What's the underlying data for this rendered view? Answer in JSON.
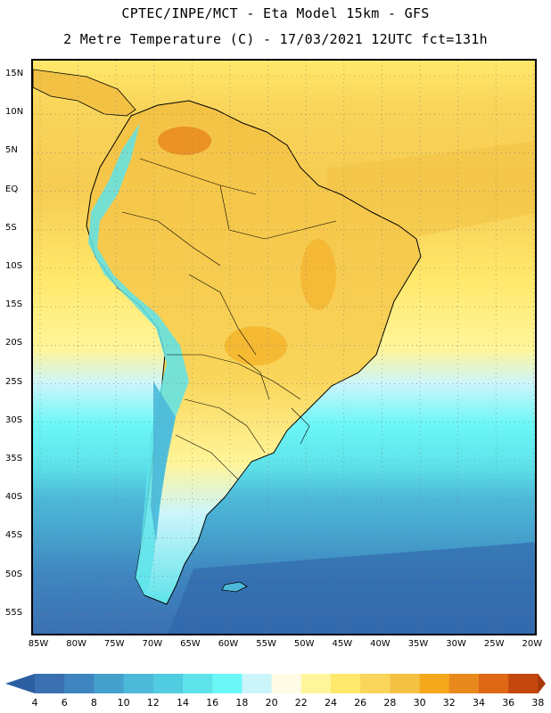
{
  "header": {
    "line1": "CPTEC/INPE/MCT -  Eta Model 15km - GFS",
    "line2": "2 Metre Temperature (C) - 17/03/2021 12UTC fct=131h"
  },
  "map": {
    "lat_labels": [
      "15N",
      "10N",
      "5N",
      "EQ",
      "5S",
      "10S",
      "15S",
      "20S",
      "25S",
      "30S",
      "35S",
      "40S",
      "45S",
      "50S",
      "55S"
    ],
    "lon_labels": [
      "85W",
      "80W",
      "75W",
      "70W",
      "65W",
      "60W",
      "55W",
      "50W",
      "45W",
      "40W",
      "35W",
      "30W",
      "25W",
      "20W"
    ],
    "grid": "dotted"
  },
  "colorbar": {
    "labels": [
      "4",
      "6",
      "8",
      "10",
      "12",
      "14",
      "16",
      "18",
      "20",
      "22",
      "24",
      "26",
      "28",
      "30",
      "32",
      "34",
      "36",
      "38"
    ],
    "colors": [
      "#3a6fb2",
      "#3f86c0",
      "#45a0cc",
      "#4db9d9",
      "#52cce0",
      "#5ee3ea",
      "#6cf7f7",
      "#ccf5fb",
      "#fffbe5",
      "#fff59a",
      "#ffe86b",
      "#f9d55a",
      "#f3c244",
      "#f4a81b",
      "#e8891e",
      "#de6816",
      "#c5470e"
    ],
    "low_color": "#2c5fa2",
    "high_color": "#a8380b"
  }
}
